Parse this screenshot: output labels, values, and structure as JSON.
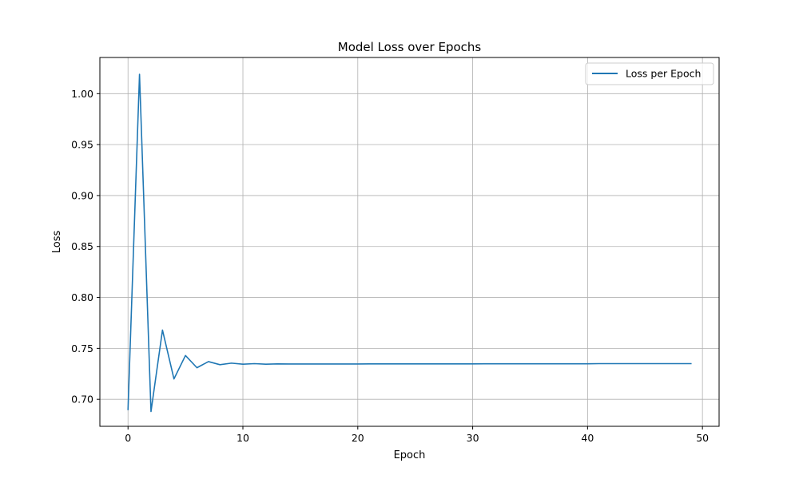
{
  "chart_data": {
    "type": "line",
    "title": "Model Loss over Epochs",
    "xlabel": "Epoch",
    "ylabel": "Loss",
    "xlim": [
      -2.45,
      51.45
    ],
    "ylim": [
      0.6735,
      1.0355
    ],
    "xticks": [
      0,
      10,
      20,
      30,
      40,
      50
    ],
    "yticks": [
      0.7,
      0.75,
      0.8,
      0.85,
      0.9,
      0.95,
      1.0
    ],
    "xtick_labels": [
      "0",
      "10",
      "20",
      "30",
      "40",
      "50"
    ],
    "ytick_labels": [
      "0.70",
      "0.75",
      "0.80",
      "0.85",
      "0.90",
      "0.95",
      "1.00"
    ],
    "grid": true,
    "legend": {
      "location": "top-right"
    },
    "series": [
      {
        "name": "Loss per Epoch",
        "color": "#1f77b4",
        "x": [
          0,
          1,
          2,
          3,
          4,
          5,
          6,
          7,
          8,
          9,
          10,
          11,
          12,
          13,
          14,
          15,
          16,
          17,
          18,
          19,
          20,
          21,
          22,
          23,
          24,
          25,
          26,
          27,
          28,
          29,
          30,
          31,
          32,
          33,
          34,
          35,
          36,
          37,
          38,
          39,
          40,
          41,
          42,
          43,
          44,
          45,
          46,
          47,
          48,
          49
        ],
        "values": [
          0.69,
          1.019,
          0.688,
          0.768,
          0.72,
          0.743,
          0.731,
          0.737,
          0.734,
          0.7355,
          0.7345,
          0.735,
          0.7345,
          0.7348,
          0.7347,
          0.7347,
          0.7347,
          0.7347,
          0.7347,
          0.7347,
          0.7347,
          0.7348,
          0.7348,
          0.7348,
          0.7348,
          0.7348,
          0.7348,
          0.7348,
          0.7348,
          0.7348,
          0.7348,
          0.7349,
          0.7349,
          0.7349,
          0.7349,
          0.7349,
          0.7349,
          0.7349,
          0.7349,
          0.7349,
          0.7349,
          0.735,
          0.735,
          0.735,
          0.735,
          0.735,
          0.735,
          0.735,
          0.735,
          0.735
        ]
      }
    ]
  }
}
